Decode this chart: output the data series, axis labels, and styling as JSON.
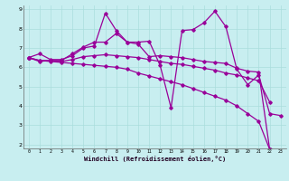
{
  "title": "",
  "xlabel": "Windchill (Refroidissement éolien,°C)",
  "ylabel": "",
  "background_color": "#c8eef0",
  "line_color": "#990099",
  "grid_color": "#aadddd",
  "xlim": [
    -0.5,
    23.5
  ],
  "ylim": [
    1.8,
    9.2
  ],
  "yticks": [
    2,
    3,
    4,
    5,
    6,
    7,
    8,
    9
  ],
  "xticks": [
    0,
    1,
    2,
    3,
    4,
    5,
    6,
    7,
    8,
    9,
    10,
    11,
    12,
    13,
    14,
    15,
    16,
    17,
    18,
    19,
    20,
    21,
    22,
    23
  ],
  "series": [
    {
      "x": [
        0,
        1,
        2,
        3,
        4,
        5,
        6,
        7,
        8,
        9,
        10,
        11,
        12,
        13,
        14,
        15,
        16,
        17,
        18,
        19,
        20,
        21,
        22,
        23
      ],
      "y": [
        6.5,
        6.7,
        6.4,
        6.4,
        6.6,
        7.0,
        7.1,
        8.8,
        7.9,
        7.3,
        7.3,
        7.35,
        6.1,
        3.9,
        7.9,
        7.95,
        8.3,
        8.9,
        8.1,
        5.9,
        5.1,
        5.6,
        3.6,
        3.5
      ]
    },
    {
      "x": [
        0,
        1,
        2,
        3,
        4,
        5,
        6,
        7,
        8,
        9,
        10,
        11,
        12,
        13,
        14,
        15,
        16,
        17,
        18,
        19,
        20,
        21,
        22,
        23
      ],
      "y": [
        6.5,
        6.3,
        6.35,
        6.35,
        6.7,
        7.05,
        7.3,
        7.3,
        7.75,
        7.3,
        7.2,
        6.55,
        6.6,
        6.55,
        6.5,
        6.4,
        6.3,
        6.25,
        6.2,
        5.95,
        5.8,
        5.75,
        1.75,
        null
      ]
    },
    {
      "x": [
        0,
        1,
        2,
        3,
        4,
        5,
        6,
        7,
        8,
        9,
        10,
        11,
        12,
        13,
        14,
        15,
        16,
        17,
        18,
        19,
        20,
        21,
        22,
        23
      ],
      "y": [
        6.5,
        6.35,
        6.35,
        6.3,
        6.4,
        6.55,
        6.6,
        6.65,
        6.6,
        6.55,
        6.5,
        6.4,
        6.3,
        6.2,
        6.15,
        6.05,
        5.95,
        5.85,
        5.7,
        5.6,
        5.45,
        5.3,
        4.2,
        null
      ]
    },
    {
      "x": [
        0,
        1,
        2,
        3,
        4,
        5,
        6,
        7,
        8,
        9,
        10,
        11,
        12,
        13,
        14,
        15,
        16,
        17,
        18,
        19,
        20,
        21,
        22,
        23
      ],
      "y": [
        6.5,
        6.35,
        6.3,
        6.25,
        6.2,
        6.15,
        6.1,
        6.05,
        6.0,
        5.9,
        5.7,
        5.55,
        5.4,
        5.25,
        5.1,
        4.9,
        4.7,
        4.5,
        4.3,
        4.0,
        3.6,
        3.2,
        1.75,
        null
      ]
    }
  ]
}
